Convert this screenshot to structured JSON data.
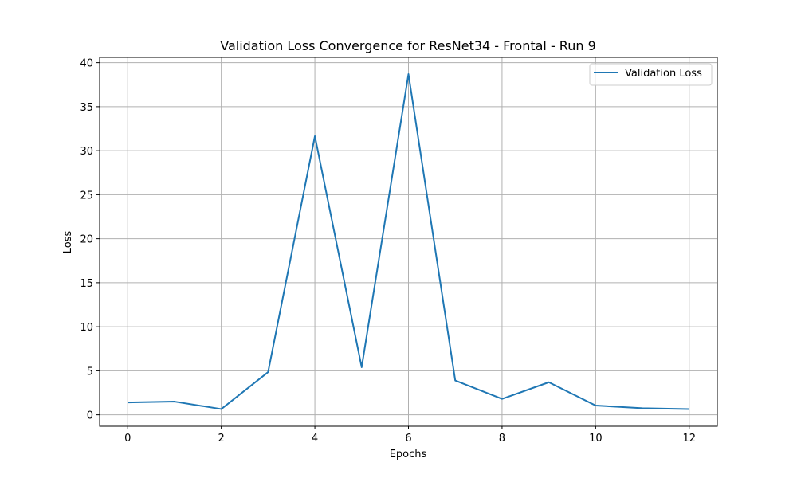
{
  "chart_data": {
    "type": "line",
    "title": "Validation Loss Convergence for ResNet34 - Frontal - Run 9",
    "xlabel": "Epochs",
    "ylabel": "Loss",
    "xlim": [
      -0.6,
      12.6
    ],
    "ylim": [
      -1.3,
      40.6
    ],
    "xticks": [
      0,
      2,
      4,
      6,
      8,
      10,
      12
    ],
    "yticks": [
      0,
      5,
      10,
      15,
      20,
      25,
      30,
      35,
      40
    ],
    "grid": true,
    "legend_position": "top-right",
    "series": [
      {
        "name": "Validation Loss",
        "color": "#1f77b4",
        "x": [
          0,
          1,
          2,
          3,
          4,
          5,
          6,
          7,
          8,
          9,
          10,
          11,
          12
        ],
        "y": [
          1.4,
          1.5,
          0.65,
          4.85,
          31.65,
          5.4,
          38.7,
          3.9,
          1.8,
          3.7,
          1.05,
          0.75,
          0.65
        ]
      }
    ]
  }
}
